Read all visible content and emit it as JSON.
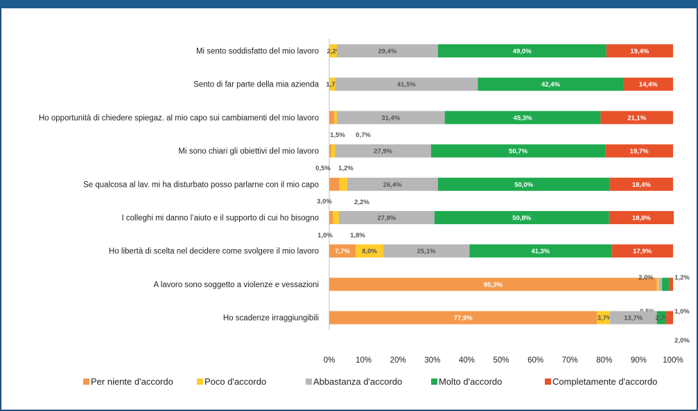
{
  "chart_data": {
    "type": "bar",
    "orientation": "horizontal",
    "stacked": true,
    "percent": true,
    "title": "",
    "xlabel": "",
    "ylabel": "",
    "xlim": [
      0,
      100
    ],
    "x_ticks": [
      "0%",
      "10%",
      "20%",
      "30%",
      "40%",
      "50%",
      "60%",
      "70%",
      "80%",
      "90%",
      "100%"
    ],
    "legend_position": "bottom",
    "grid": false,
    "categories": [
      "Mi sento soddisfatto del mio lavoro",
      "Sento di far parte della mia azienda",
      "Ho opportunità di chiedere spiegaz. al mio capo sui cambiamenti del mio lavoro",
      "Mi sono chiari gli obiettivi del mio lavoro",
      "Se qualcosa al lav. mi ha disturbato posso parlarne con il mio capo",
      "I colleghi mi danno l’aiuto e il supporto di cui ho bisogno",
      "Ho libertà di scelta nel decidere come svolgere il mio lavoro",
      "A lavoro sono soggetto a violenze e vessazioni",
      "Ho scadenze irraggiungibili"
    ],
    "series": [
      {
        "name": "Per niente d'accordo",
        "color": "#f4994c",
        "values": [
          0,
          0,
          1.5,
          0.5,
          3.0,
          1.0,
          7.7,
          95.3,
          77.9
        ],
        "labels": [
          "",
          "",
          "1,5%",
          "0,5%",
          "3,0%",
          "1,0%",
          "7,7%",
          "95,3%",
          "77,9%"
        ]
      },
      {
        "name": "Poco d'accordo",
        "color": "#ffcc29",
        "values": [
          2.2,
          1.7,
          0.7,
          1.2,
          2.2,
          1.8,
          8.0,
          0.5,
          3.7
        ],
        "labels": [
          "2,2%",
          "1,7%",
          "0,7%",
          "1,2%",
          "2,2%",
          "1,8%",
          "8,0%",
          "0,5%",
          "3,7%"
        ]
      },
      {
        "name": "Abbastanza d'accordo",
        "color": "#b7b7b7",
        "values": [
          29.4,
          41.5,
          31.4,
          27.9,
          26.4,
          27.8,
          25.1,
          1.0,
          13.7
        ],
        "labels": [
          "29,4%",
          "41,5%",
          "31,4%",
          "27,9%",
          "26,4%",
          "27,8%",
          "25,1%",
          "1,0%",
          "13,7%"
        ]
      },
      {
        "name": "Molto d'accordo",
        "color": "#1faa4f",
        "values": [
          49.0,
          42.4,
          45.3,
          50.7,
          50.0,
          50.8,
          41.3,
          2.0,
          2.7
        ],
        "labels": [
          "49,0%",
          "42,4%",
          "45,3%",
          "50,7%",
          "50,0%",
          "50,8%",
          "41,3%",
          "2,0%",
          "2,7%"
        ]
      },
      {
        "name": "Completamente d'accordo",
        "color": "#e8522b",
        "values": [
          19.4,
          14.4,
          21.1,
          19.7,
          18.4,
          18.8,
          17.9,
          1.2,
          2.0
        ],
        "labels": [
          "19,4%",
          "14,4%",
          "21,1%",
          "19,7%",
          "18,4%",
          "18,8%",
          "17,9%",
          "1,2%",
          "2,0%"
        ]
      }
    ]
  }
}
